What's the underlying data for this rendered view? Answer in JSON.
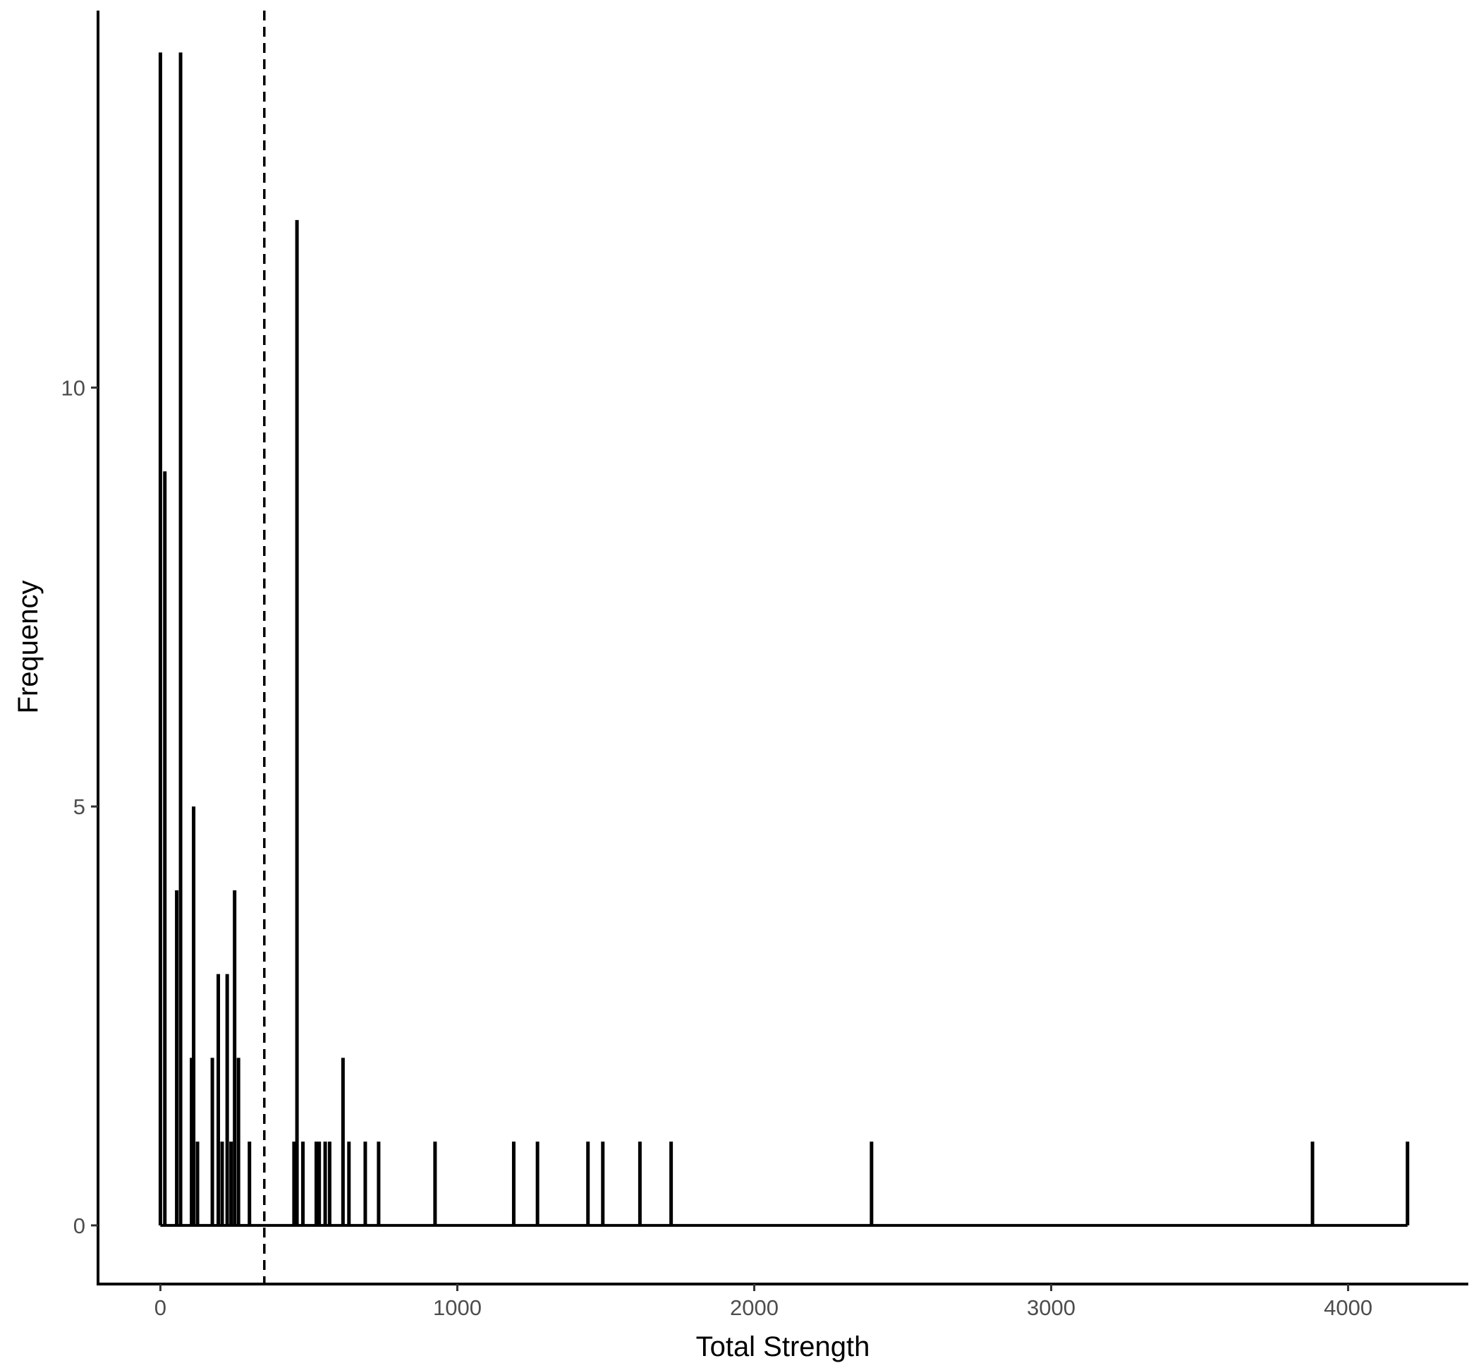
{
  "chart_data": {
    "type": "histogram",
    "title": "",
    "xlabel": "Total Strength",
    "ylabel": "Frequency",
    "xlim": [
      -210,
      4400
    ],
    "ylim": [
      -0.7,
      14.5
    ],
    "x_ticks": [
      0,
      1000,
      2000,
      3000,
      4000
    ],
    "y_ticks": [
      0,
      5,
      10
    ],
    "grid": false,
    "legend": "none",
    "reference_line": {
      "x": 350,
      "style": "dashed"
    },
    "bins": [
      {
        "x": 0,
        "count": 14
      },
      {
        "x": 15,
        "count": 9
      },
      {
        "x": 55,
        "count": 4
      },
      {
        "x": 68,
        "count": 14
      },
      {
        "x": 105,
        "count": 2
      },
      {
        "x": 112,
        "count": 5
      },
      {
        "x": 125,
        "count": 1
      },
      {
        "x": 175,
        "count": 2
      },
      {
        "x": 195,
        "count": 3
      },
      {
        "x": 208,
        "count": 1
      },
      {
        "x": 225,
        "count": 3
      },
      {
        "x": 238,
        "count": 1
      },
      {
        "x": 250,
        "count": 4
      },
      {
        "x": 263,
        "count": 2
      },
      {
        "x": 300,
        "count": 1
      },
      {
        "x": 450,
        "count": 1
      },
      {
        "x": 460,
        "count": 12
      },
      {
        "x": 480,
        "count": 1
      },
      {
        "x": 525,
        "count": 1
      },
      {
        "x": 535,
        "count": 1
      },
      {
        "x": 555,
        "count": 1
      },
      {
        "x": 570,
        "count": 1
      },
      {
        "x": 615,
        "count": 2
      },
      {
        "x": 635,
        "count": 1
      },
      {
        "x": 690,
        "count": 1
      },
      {
        "x": 735,
        "count": 1
      },
      {
        "x": 925,
        "count": 1
      },
      {
        "x": 1190,
        "count": 1
      },
      {
        "x": 1270,
        "count": 1
      },
      {
        "x": 1440,
        "count": 1
      },
      {
        "x": 1490,
        "count": 1
      },
      {
        "x": 1615,
        "count": 1
      },
      {
        "x": 1720,
        "count": 1
      },
      {
        "x": 2395,
        "count": 1
      },
      {
        "x": 3880,
        "count": 1
      },
      {
        "x": 4200,
        "count": 1
      }
    ],
    "baseline_range": [
      0,
      4200
    ],
    "colors": {
      "line": "#000000",
      "tick_text": "#4d4d4d",
      "background": "#ffffff"
    }
  }
}
